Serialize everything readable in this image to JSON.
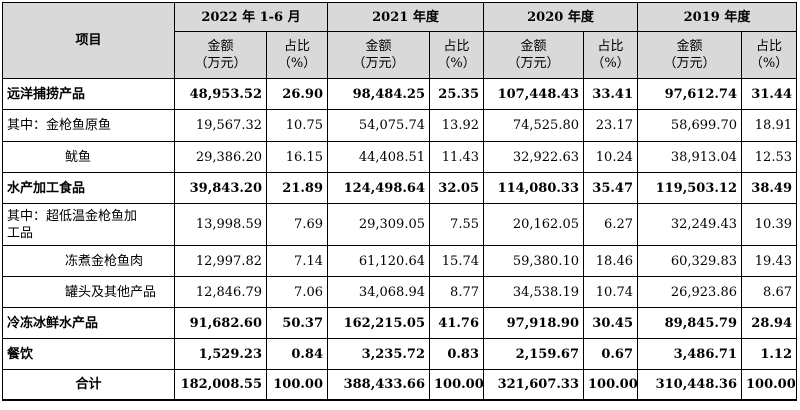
{
  "table": {
    "header": {
      "item_label": "项目",
      "periods": [
        "2022 年 1-6 月",
        "2021 年度",
        "2020 年度",
        "2019 年度"
      ],
      "amount_label": "金额",
      "amount_unit": "（万元）",
      "ratio_label": "占比",
      "ratio_unit": "（%）"
    },
    "rows": [
      {
        "label": "远洋捕捞产品",
        "values": [
          "48,953.52",
          "26.90",
          "98,484.25",
          "25.35",
          "107,448.43",
          "33.41",
          "97,612.74",
          "31.44"
        ]
      },
      {
        "label": "其中：金枪鱼原鱼",
        "values": [
          "19,567.32",
          "10.75",
          "54,075.74",
          "13.92",
          "74,525.80",
          "23.17",
          "58,699.70",
          "18.91"
        ]
      },
      {
        "label": "鱿鱼",
        "values": [
          "29,386.20",
          "16.15",
          "44,408.51",
          "11.43",
          "32,922.63",
          "10.24",
          "38,913.04",
          "12.53"
        ]
      },
      {
        "label": "水产加工食品",
        "values": [
          "39,843.20",
          "21.89",
          "124,498.64",
          "32.05",
          "114,080.33",
          "35.47",
          "119,503.12",
          "38.49"
        ]
      },
      {
        "label_line1": "其中：超低温金枪鱼加",
        "label_line2": "工品",
        "values": [
          "13,998.59",
          "7.69",
          "29,309.05",
          "7.55",
          "20,162.05",
          "6.27",
          "32,249.43",
          "10.39"
        ]
      },
      {
        "label": "冻煮金枪鱼肉",
        "values": [
          "12,997.82",
          "7.14",
          "61,120.64",
          "15.74",
          "59,380.10",
          "18.46",
          "60,329.83",
          "19.43"
        ]
      },
      {
        "label": "罐头及其他产品",
        "values": [
          "12,846.79",
          "7.06",
          "34,068.94",
          "8.77",
          "34,538.19",
          "10.74",
          "26,923.86",
          "8.67"
        ]
      },
      {
        "label": "冷冻冰鲜水产品",
        "values": [
          "91,682.60",
          "50.37",
          "162,215.05",
          "41.76",
          "97,918.90",
          "30.45",
          "89,845.79",
          "28.94"
        ]
      },
      {
        "label": "餐饮",
        "values": [
          "1,529.23",
          "0.84",
          "3,235.72",
          "0.83",
          "2,159.67",
          "0.67",
          "3,486.71",
          "1.12"
        ]
      },
      {
        "label": "合计",
        "values": [
          "182,008.55",
          "100.00",
          "388,433.66",
          "100.00",
          "321,607.33",
          "100.00",
          "310,448.36",
          "100.00"
        ]
      }
    ]
  }
}
